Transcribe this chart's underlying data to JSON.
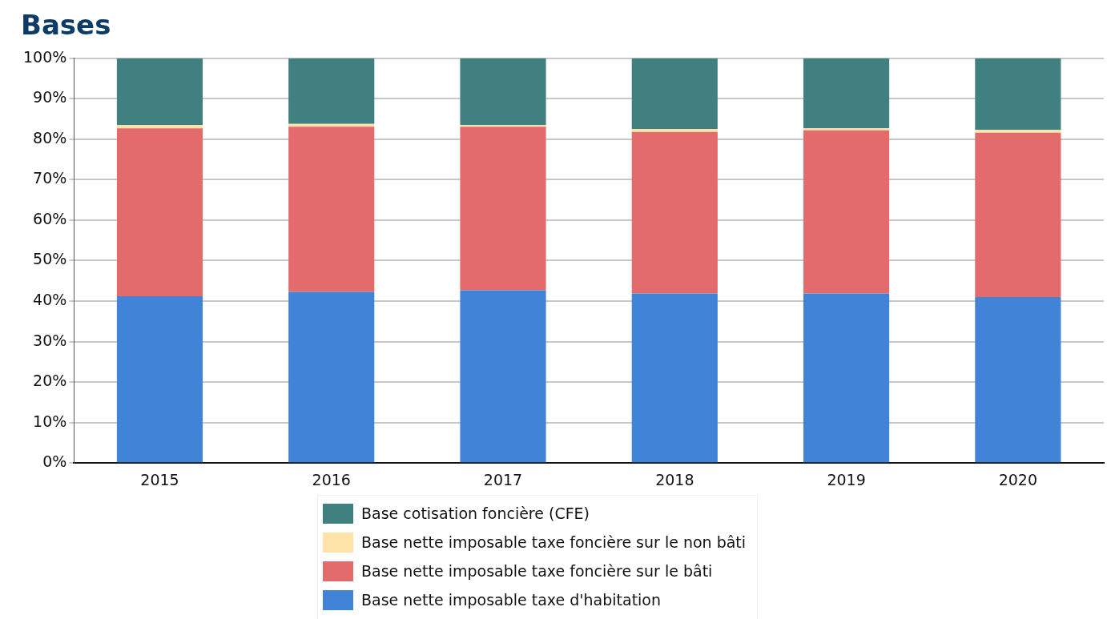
{
  "chart_data": {
    "type": "bar",
    "title": "Bases",
    "categories": [
      "2015",
      "2016",
      "2017",
      "2018",
      "2019",
      "2020"
    ],
    "stacked": true,
    "series": [
      {
        "name": "Base nette imposable taxe d'habitation",
        "color": "#4183d7",
        "values": [
          41.2,
          42.3,
          42.7,
          41.9,
          41.9,
          41.0
        ]
      },
      {
        "name": "Base nette imposable taxe foncière sur le bâti",
        "color": "#e36b6b",
        "values": [
          41.5,
          40.8,
          40.4,
          39.9,
          40.3,
          40.6
        ]
      },
      {
        "name": "Base nette imposable taxe foncière sur le non bâti",
        "color": "#fde3a7",
        "values": [
          0.8,
          0.7,
          0.4,
          0.7,
          0.5,
          0.7
        ]
      },
      {
        "name": "Base cotisation foncière (CFE)",
        "color": "#418080",
        "values": [
          16.5,
          16.2,
          16.5,
          17.5,
          17.3,
          17.7
        ]
      }
    ],
    "ylim": [
      0,
      100
    ],
    "yticks": [
      {
        "value": 0,
        "label": "0%"
      },
      {
        "value": 10,
        "label": "10%"
      },
      {
        "value": 20,
        "label": "20%"
      },
      {
        "value": 30,
        "label": "30%"
      },
      {
        "value": 40,
        "label": "40%"
      },
      {
        "value": 50,
        "label": "50%"
      },
      {
        "value": 60,
        "label": "60%"
      },
      {
        "value": 70,
        "label": "70%"
      },
      {
        "value": 80,
        "label": "80%"
      },
      {
        "value": 90,
        "label": "90%"
      },
      {
        "value": 100,
        "label": "100%"
      }
    ],
    "grid": "y",
    "legend": "bottom"
  }
}
